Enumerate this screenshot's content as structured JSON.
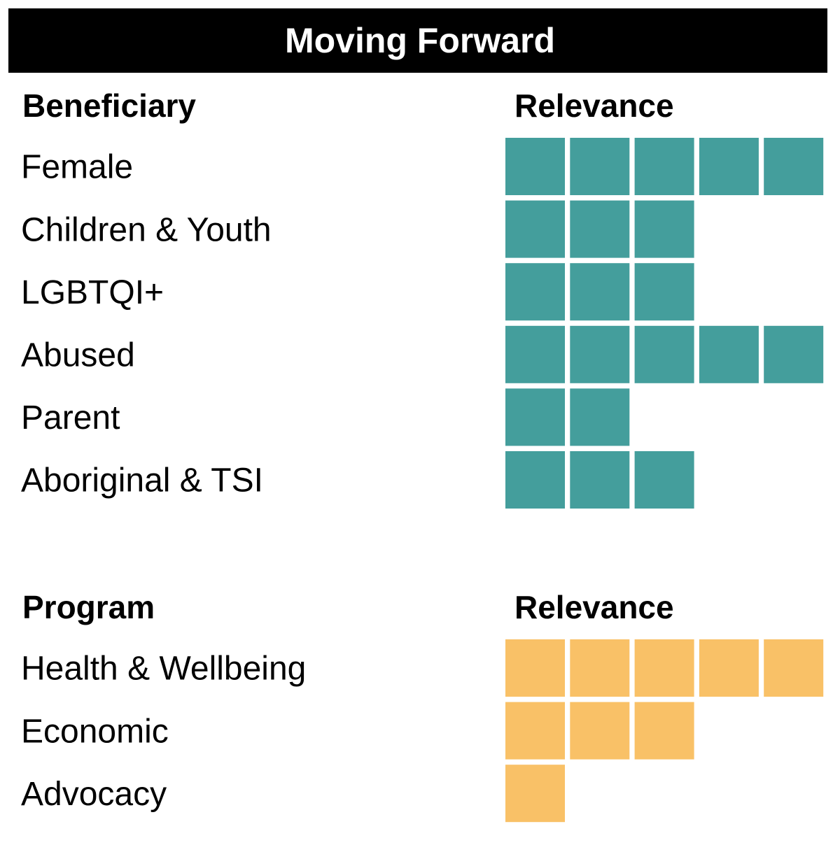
{
  "title": "Moving Forward",
  "sections": [
    {
      "header": "Beneficiary",
      "relevance_header": "Relevance",
      "color": "#449e9c",
      "rows": [
        {
          "label": "Female",
          "relevance": 5
        },
        {
          "label": "Children & Youth",
          "relevance": 3
        },
        {
          "label": "LGBTQI+",
          "relevance": 3
        },
        {
          "label": "Abused",
          "relevance": 5
        },
        {
          "label": "Parent",
          "relevance": 2
        },
        {
          "label": "Aboriginal & TSI",
          "relevance": 3
        }
      ]
    },
    {
      "header": "Program",
      "relevance_header": "Relevance",
      "color": "#f9c167",
      "rows": [
        {
          "label": "Health & Wellbeing",
          "relevance": 5
        },
        {
          "label": "Economic",
          "relevance": 3
        },
        {
          "label": "Advocacy",
          "relevance": 1
        }
      ]
    }
  ]
}
